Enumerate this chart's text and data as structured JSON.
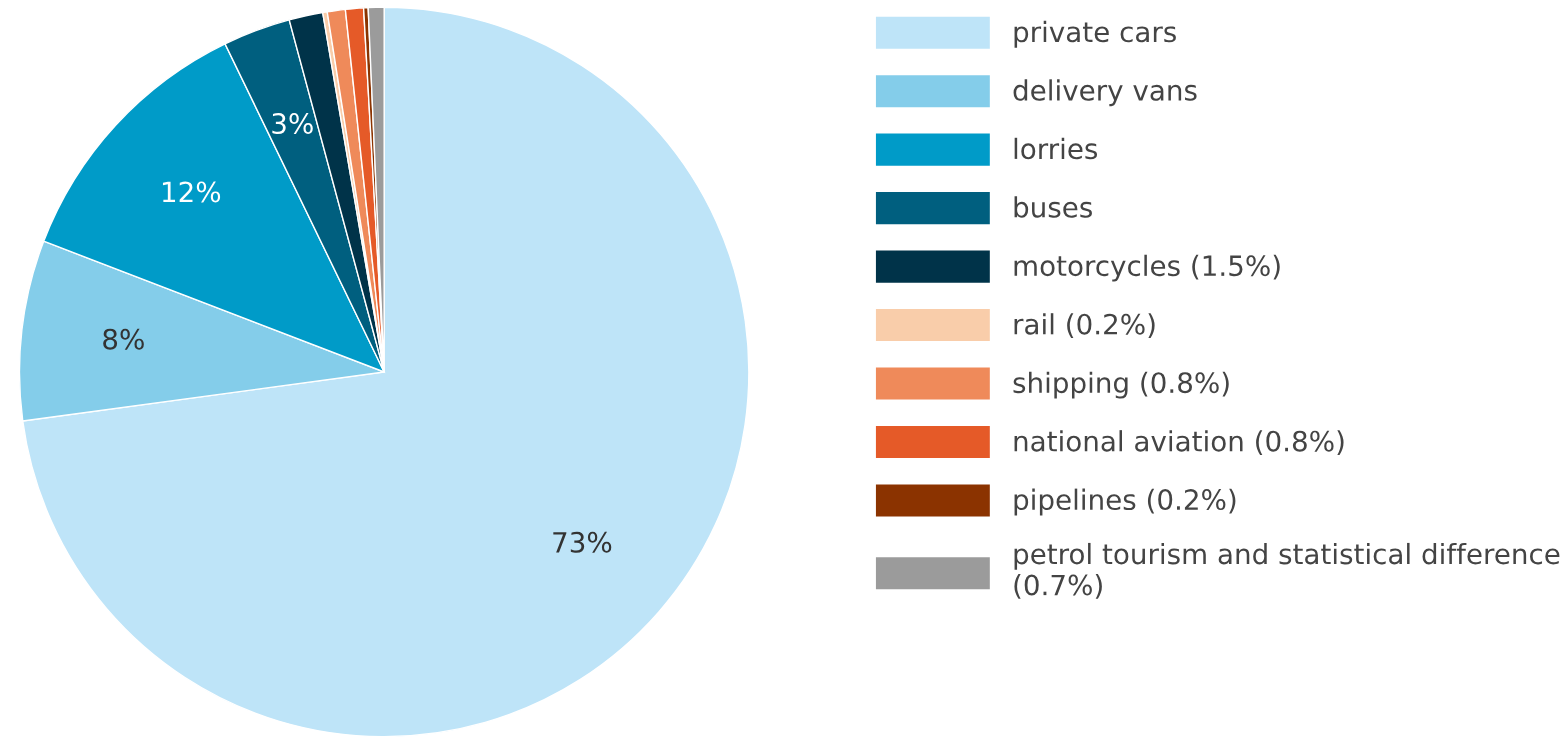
{
  "chart_data": {
    "type": "pie",
    "categories": [
      "private cars",
      "delivery vans",
      "lorries",
      "buses",
      "motorcycles (1.5%)",
      "rail (0.2%)",
      "shipping (0.8%)",
      "national aviation (0.8%)",
      "pipelines (0.2%)",
      "petrol tourism and statistical difference (0.7%)"
    ],
    "values": [
      73,
      8,
      12,
      3,
      1.5,
      0.2,
      0.8,
      0.8,
      0.2,
      0.7
    ],
    "colors": [
      "#bee4f8",
      "#84cdea",
      "#009bc8",
      "#005f7f",
      "#003349",
      "#f9cdaa",
      "#ef8a5a",
      "#e55a28",
      "#8b3300",
      "#9b9b9b"
    ],
    "value_labels": [
      "73%",
      "8%",
      "12%",
      "3%",
      null,
      null,
      null,
      null,
      null,
      null
    ],
    "legend": "right"
  }
}
